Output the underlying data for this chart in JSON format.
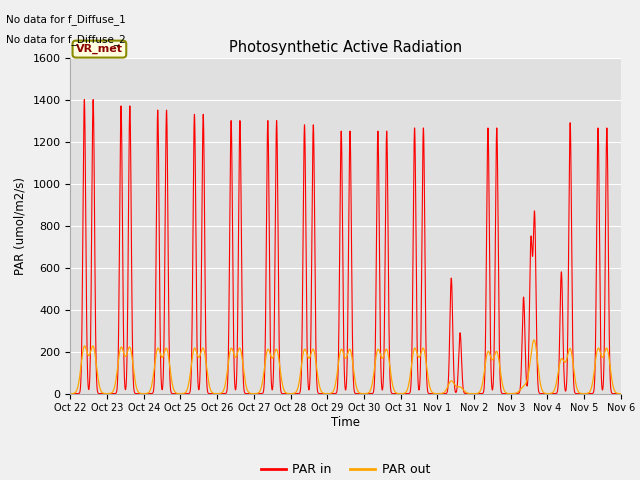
{
  "title": "Photosynthetic Active Radiation",
  "ylabel": "PAR (umol/m2/s)",
  "xlabel": "Time",
  "ylim": [
    0,
    1600
  ],
  "yticks": [
    0,
    200,
    400,
    600,
    800,
    1000,
    1200,
    1400,
    1600
  ],
  "xtick_labels": [
    "Oct 22",
    "Oct 23",
    "Oct 24",
    "Oct 25",
    "Oct 26",
    "Oct 27",
    "Oct 28",
    "Oct 29",
    "Oct 30",
    "Oct 31",
    "Nov 1",
    "Nov 2",
    "Nov 3",
    "Nov 4",
    "Nov 5",
    "Nov 6"
  ],
  "color_par_in": "#FF0000",
  "color_par_out": "#FFA500",
  "legend_labels": [
    "PAR in",
    "PAR out"
  ],
  "annotation_text1": "No data for f_Diffuse_1",
  "annotation_text2": "No data for f_Diffuse_2",
  "vr_met_label": "VR_met",
  "background_color": "#f0f0f0",
  "ax_background": "#e0e0e0",
  "grid_color": "#ffffff",
  "peak_in": [
    1400,
    1370,
    1350,
    1330,
    1300,
    1300,
    1280,
    1250,
    1250,
    1265,
    550,
    1265,
    845,
    1290,
    1265,
    0
  ],
  "peak_out": [
    220,
    215,
    210,
    210,
    210,
    205,
    205,
    205,
    205,
    210,
    60,
    195,
    220,
    210,
    210,
    0
  ],
  "nov1_peak2": 290,
  "nov3_peak1": 460,
  "nov3_peak2": 720,
  "nov4_peak1": 580
}
